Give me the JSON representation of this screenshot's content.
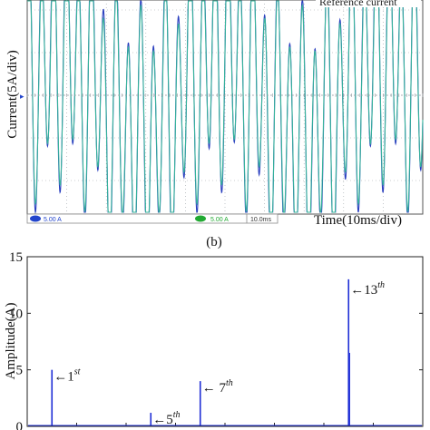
{
  "colors": {
    "scope_frame": "#555555",
    "scope_grid": "#9aa0a6",
    "measured": "#2a3fbf",
    "reference": "#36b39a",
    "spectrum": "#1f2fd6",
    "badge": "#2244cc",
    "badge_green": "#22aa33"
  },
  "chart_data": [
    {
      "type": "line",
      "legend_text": "Reference current",
      "ylabel": "Current(5A/div)",
      "xlabel": "Time(10ms/div)",
      "channel_1": "5.00 A",
      "channel_2": "5.00 A",
      "timebase": "10.0ms",
      "caption": "(b)",
      "divisions_x": 10,
      "divisions_y": 5,
      "fundamental_cycles": 2.45,
      "harmonics": [
        {
          "order": 1,
          "amplitude": 5
        },
        {
          "order": 5,
          "amplitude": 1.2
        },
        {
          "order": 7,
          "amplitude": 4
        },
        {
          "order": 13,
          "amplitude": 13
        }
      ],
      "series": [
        {
          "values_note": "measured"
        },
        {
          "values_note": "reference"
        }
      ]
    },
    {
      "type": "bar",
      "ylabel": "Amplitude(A)",
      "ylim": [
        0,
        15
      ],
      "yticks": [
        "0",
        "5",
        "10",
        "15"
      ],
      "x_order_range": [
        0,
        16
      ],
      "bars": [
        {
          "order": 1,
          "value": 5,
          "label_pre": "←1",
          "label_sup": "st"
        },
        {
          "order": 5,
          "value": 1.2,
          "label_pre": "←5",
          "label_sup": "th"
        },
        {
          "order": 7,
          "value": 4,
          "label_pre": "← 7",
          "label_sup": "th"
        },
        {
          "order": 13,
          "value": 13,
          "label_pre": "←13",
          "label_sup": "th"
        }
      ]
    }
  ]
}
